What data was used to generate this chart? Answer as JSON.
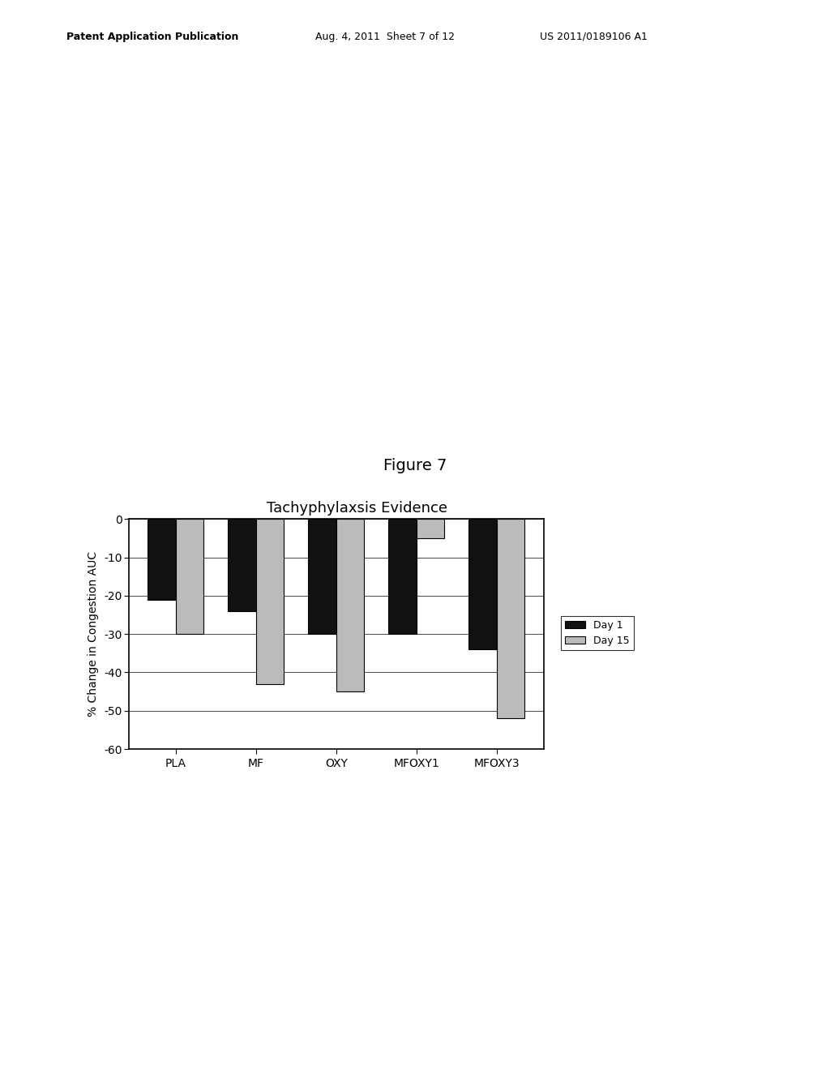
{
  "title": "Tachyphylaxsis Evidence",
  "figure_label": "Figure 7",
  "ylabel": "% Change in Congestion AUC",
  "categories": [
    "PLA",
    "MF",
    "OXY",
    "MFOXY1",
    "MFOXY3"
  ],
  "day1_values": [
    -21,
    -24,
    -30,
    -30,
    -34
  ],
  "day15_values": [
    -30,
    -43,
    -45,
    -5,
    -52
  ],
  "ylim": [
    -60,
    0
  ],
  "yticks": [
    0,
    -10,
    -20,
    -30,
    -40,
    -50,
    -60
  ],
  "day1_color": "#111111",
  "day15_color": "#bbbbbb",
  "legend_day1": "Day 1",
  "legend_day15": "Day 15",
  "bar_width": 0.35,
  "background_color": "#ffffff",
  "chart_title_fontsize": 13,
  "fig_label_fontsize": 14,
  "axis_fontsize": 10,
  "tick_fontsize": 10,
  "header_left": "Patent Application Publication",
  "header_mid": "Aug. 4, 2011  Sheet 7 of 12",
  "header_right": "US 2011/0189106 A1"
}
